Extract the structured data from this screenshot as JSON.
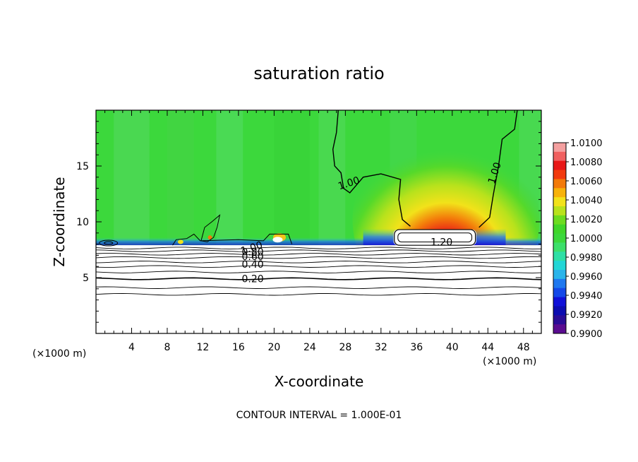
{
  "chart_data": {
    "type": "heatmap",
    "title": "saturation ratio",
    "xlabel": "X-coordinate",
    "ylabel": "Z-coordinate",
    "x_unit_left": "(×1000 m)",
    "x_unit_right": "(×1000 m)",
    "xlim": [
      0,
      50
    ],
    "ylim": [
      0,
      20
    ],
    "x_ticks": [
      4,
      8,
      12,
      16,
      20,
      24,
      28,
      32,
      36,
      40,
      44,
      48
    ],
    "y_ticks": [
      5,
      10,
      15
    ],
    "colorbar": {
      "ticks": [
        "1.0100",
        "1.0080",
        "1.0060",
        "1.0040",
        "1.0020",
        "1.0000",
        "0.9980",
        "0.9960",
        "0.9940",
        "0.9920",
        "0.9900"
      ],
      "colors": [
        "#f4a0a0",
        "#f06060",
        "#e81818",
        "#f23a0e",
        "#f37a0a",
        "#f7b20a",
        "#f2e21a",
        "#b9e21c",
        "#6ddc20",
        "#40d62a",
        "#3cd83c",
        "#3cdf6a",
        "#2edfa5",
        "#22d6d6",
        "#2ab4ea",
        "#1f78ef",
        "#1448e8",
        "#1010d8",
        "#0c0cb0",
        "#2a0c96",
        "#5a0c90"
      ]
    },
    "contour_labels": [
      {
        "text": "1.00",
        "x": 28.5,
        "z": 13.5
      },
      {
        "text": "1.00",
        "x": 45.1,
        "z": 14.6
      },
      {
        "text": "1.20",
        "x": 38.8,
        "z": 8.2
      },
      {
        "text": "1.00",
        "x": 17.6,
        "z": 7.7
      },
      {
        "text": "0.80",
        "x": 17.6,
        "z": 7.3
      },
      {
        "text": "0.60",
        "x": 17.6,
        "z": 6.9
      },
      {
        "text": "0.40",
        "x": 17.6,
        "z": 6.2
      },
      {
        "text": "0.20",
        "x": 17.6,
        "z": 4.9
      }
    ],
    "contour_interval_text": "CONTOUR INTERVAL = 1.000E-01"
  }
}
